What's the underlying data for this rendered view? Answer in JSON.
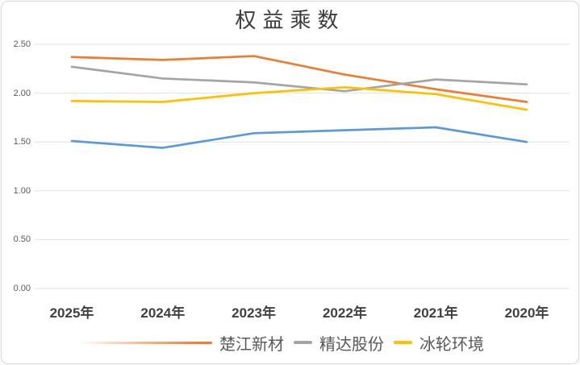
{
  "window": {
    "background": "#ffffff",
    "border_color": "#d9d9d9"
  },
  "chart_data": {
    "type": "line",
    "title": "权益乘数",
    "categories": [
      "2025年",
      "2024年",
      "2023年",
      "2022年",
      "2021年",
      "2020年"
    ],
    "series": [
      {
        "name": "楚江新材",
        "color": "#ED7D31",
        "in_legend": true,
        "values": [
          2.37,
          2.34,
          2.38,
          2.19,
          2.04,
          1.91
        ]
      },
      {
        "name": "精达股份",
        "color": "#A5A5A5",
        "in_legend": true,
        "values": [
          2.27,
          2.15,
          2.11,
          2.02,
          2.14,
          2.09
        ]
      },
      {
        "name": "冰轮环境",
        "color": "#FFC000",
        "in_legend": true,
        "values": [
          1.92,
          1.91,
          2.0,
          2.06,
          1.99,
          1.83
        ]
      },
      {
        "name": "",
        "color": "#5B9BD5",
        "in_legend": false,
        "values": [
          1.51,
          1.44,
          1.59,
          1.62,
          1.65,
          1.5
        ]
      }
    ],
    "ylim": [
      0,
      2.5
    ],
    "ytick_labels": [
      "0.00",
      "0.50",
      "1.00",
      "1.50",
      "2.00",
      "2.50"
    ],
    "grid": true,
    "gridline_color": "#e3e3e3",
    "legend_position": "bottom",
    "legend": [
      {
        "label": "楚江新材",
        "color": "#ED7D31",
        "marker": "gradient-line"
      },
      {
        "label": "精达股份",
        "color": "#A5A5A5",
        "marker": "line"
      },
      {
        "label": "冰轮环境",
        "color": "#FFC000",
        "marker": "line"
      }
    ]
  }
}
